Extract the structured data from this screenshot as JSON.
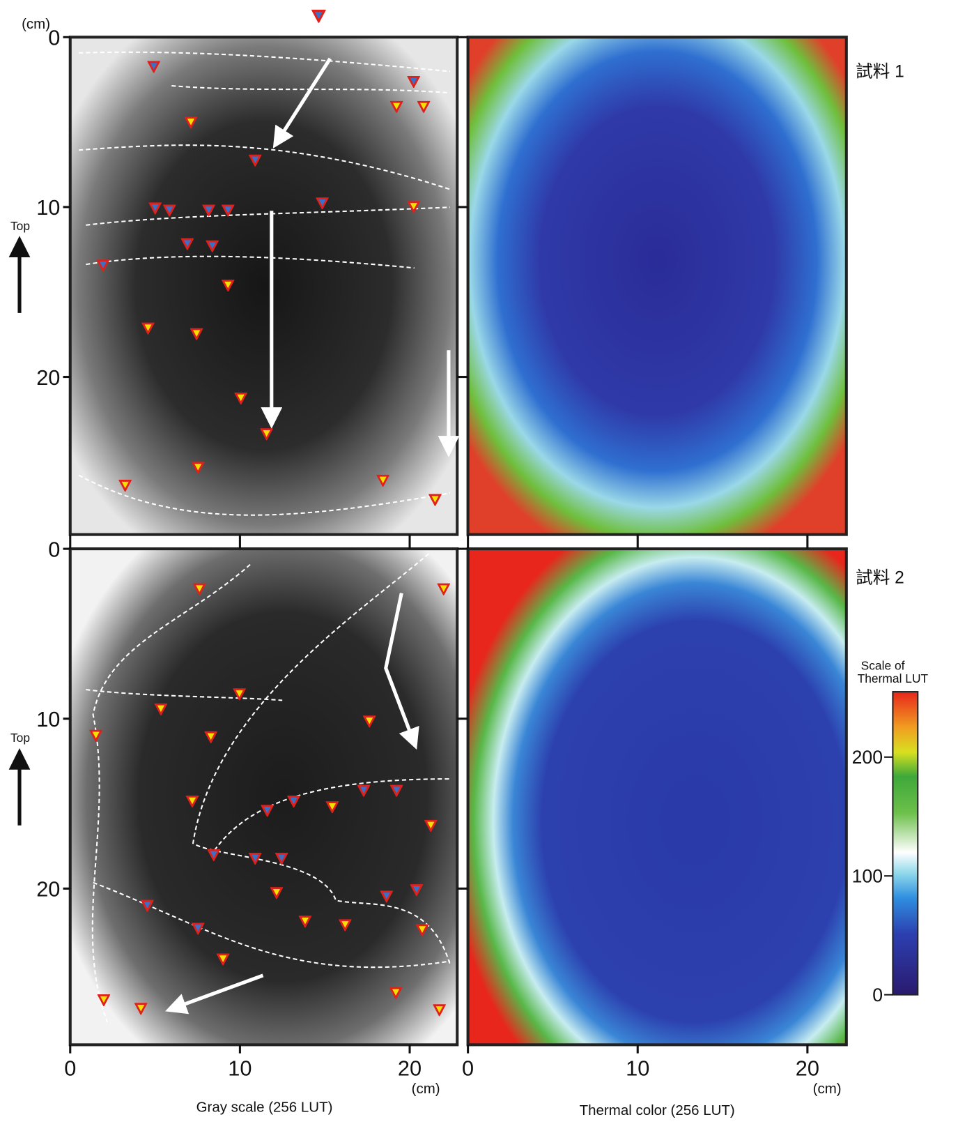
{
  "figure": {
    "y_unit": "(cm)",
    "x_unit": "(cm)",
    "up_label": "Top",
    "ylim": [
      0,
      29.3
    ],
    "yticks": [
      0,
      10,
      20
    ],
    "xlim": [
      0,
      22.8
    ],
    "xticks": [
      0,
      10,
      20
    ],
    "samples": [
      "試料 1",
      "試料 2"
    ],
    "captions": [
      "Gray scale (256 LUT)",
      "Thermal color (256 LUT)"
    ],
    "lut_scale": {
      "title": [
        "Scale of",
        "Thermal LUT"
      ],
      "lim": [
        0,
        255
      ],
      "ticks": [
        0,
        100,
        200
      ]
    }
  }
}
